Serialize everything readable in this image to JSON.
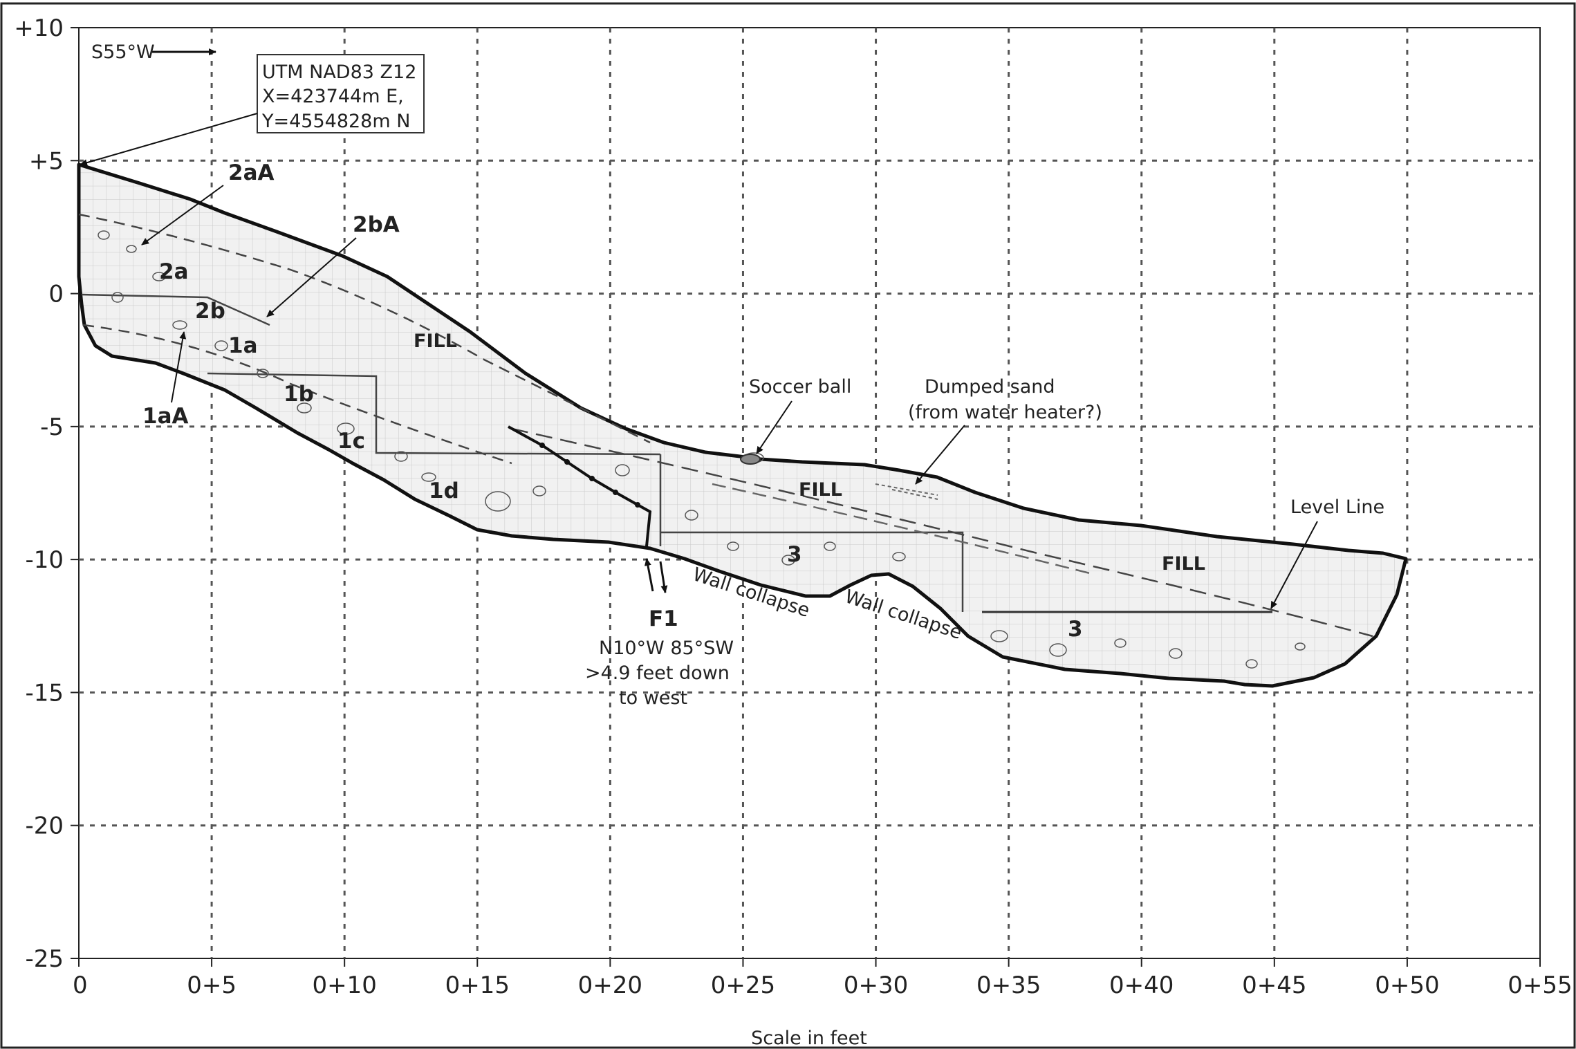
{
  "title_arrow": "S55°W",
  "utm_box": {
    "line1": "UTM NAD83 Z12",
    "line2": "X=423744m E,",
    "line3": "Y=4554828m N"
  },
  "axes": {
    "x_label": "Scale in feet",
    "x_ticks": [
      "0",
      "0+5",
      "0+10",
      "0+15",
      "0+20",
      "0+25",
      "0+30",
      "0+35",
      "0+40",
      "0+45",
      "0+50",
      "0+55"
    ],
    "x_values": [
      0,
      5,
      10,
      15,
      20,
      25,
      30,
      35,
      40,
      45,
      50,
      55
    ],
    "y_ticks": [
      "+10",
      "+5",
      "0",
      "-5",
      "-10",
      "-15",
      "-20",
      "-25"
    ],
    "y_values": [
      10,
      5,
      0,
      -5,
      -10,
      -15,
      -20,
      -25
    ],
    "x_range": [
      0,
      55
    ],
    "y_range": [
      -25,
      10
    ],
    "grid": "dashed"
  },
  "units": {
    "u2aA": "2aA",
    "u2bA": "2bA",
    "u2a": "2a",
    "u2b": "2b",
    "u1a": "1a",
    "u1b": "1b",
    "u1c": "1c",
    "u1d": "1d",
    "u1aA": "1aA",
    "fill1": "FILL",
    "fill2": "FILL",
    "fill3": "FILL",
    "u3a": "3",
    "u3b": "3"
  },
  "annotations": {
    "soccer": "Soccer ball",
    "dumped1": "Dumped sand",
    "dumped2": "(from water heater?)",
    "level": "Level Line",
    "wall1": "Wall collapse",
    "wall2": "Wall collapse",
    "fault_name": "F1",
    "fault1": "N10°W 85°SW",
    "fault2": ">4.9 feet down",
    "fault3": "to west"
  },
  "colors": {
    "fill_shade": "#f1f1f1",
    "grid": "#555555",
    "outline": "#111111"
  }
}
